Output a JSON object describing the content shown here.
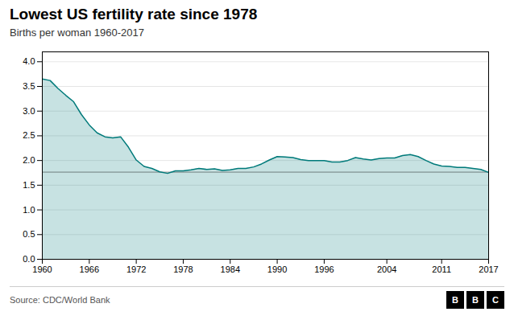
{
  "chart_data": {
    "type": "area",
    "title": "Lowest US fertility rate since 1978",
    "subtitle": "Births per woman 1960-2017",
    "source": "Source: CDC/World Bank",
    "annotations": [
      "B",
      "B",
      "C"
    ],
    "color": "#007A7A",
    "x": [
      1960,
      1961,
      1962,
      1963,
      1964,
      1965,
      1966,
      1967,
      1968,
      1969,
      1970,
      1971,
      1972,
      1973,
      1974,
      1975,
      1976,
      1977,
      1978,
      1979,
      1980,
      1981,
      1982,
      1983,
      1984,
      1985,
      1986,
      1987,
      1988,
      1989,
      1990,
      1991,
      1992,
      1993,
      1994,
      1995,
      1996,
      1997,
      1998,
      1999,
      2000,
      2001,
      2002,
      2003,
      2004,
      2005,
      2006,
      2007,
      2008,
      2009,
      2010,
      2011,
      2012,
      2013,
      2014,
      2015,
      2016,
      2017
    ],
    "values": [
      3.65,
      3.62,
      3.46,
      3.32,
      3.19,
      2.93,
      2.72,
      2.56,
      2.48,
      2.46,
      2.48,
      2.27,
      2.01,
      1.88,
      1.84,
      1.77,
      1.74,
      1.79,
      1.79,
      1.81,
      1.84,
      1.82,
      1.83,
      1.8,
      1.81,
      1.84,
      1.84,
      1.87,
      1.93,
      2.01,
      2.08,
      2.07,
      2.06,
      2.02,
      2.0,
      2.0,
      2.0,
      1.97,
      1.97,
      2.0,
      2.06,
      2.03,
      2.01,
      2.04,
      2.05,
      2.05,
      2.1,
      2.12,
      2.08,
      2.0,
      1.93,
      1.89,
      1.88,
      1.86,
      1.86,
      1.84,
      1.82,
      1.76
    ],
    "reference_line": 1.765,
    "xlim": [
      1960,
      2017
    ],
    "xticks": [
      1960,
      1966,
      1972,
      1978,
      1984,
      1990,
      1996,
      2004,
      2011,
      2017
    ],
    "ylim": [
      0,
      4.2
    ],
    "yticks": [
      0,
      0.5,
      1,
      1.5,
      2,
      2.5,
      3,
      3.5,
      4
    ],
    "grid": true
  }
}
